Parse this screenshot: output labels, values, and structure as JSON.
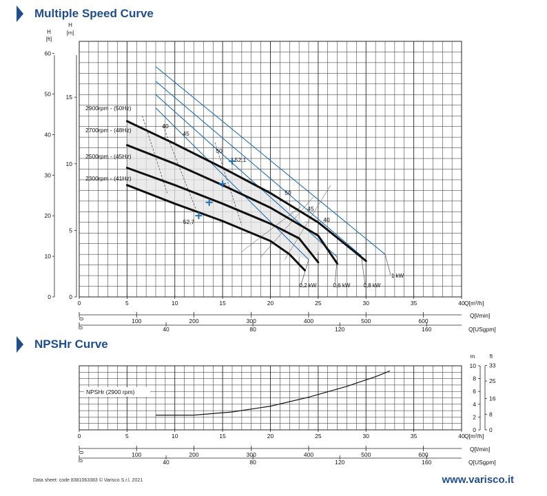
{
  "section1": {
    "title": "Multiple Speed Curve"
  },
  "section2": {
    "title": "NPSHr Curve"
  },
  "footer": {
    "left": "Data sheet: code 8381063383 © Varisco S.r.l. 2021",
    "right": "www.varisco.it"
  },
  "colors": {
    "title": "#1f4e8c",
    "curve": "#111111",
    "iso_efficiency": "#1f6fb5",
    "power": "#1f6fb5",
    "grid": "#222222"
  },
  "chart_data": [
    {
      "type": "line",
      "id": "multiple-speed",
      "axes": {
        "h_ft_label": [
          "H",
          "[ft]"
        ],
        "h_m_label": [
          "H",
          "[m]"
        ],
        "ft_ticks": [
          "0",
          "10",
          "20",
          "30",
          "40",
          "50",
          "60"
        ],
        "m_ticks": [
          "0",
          "5",
          "10",
          "15"
        ],
        "x_label": "Q[m³/h]",
        "x_ticks": [
          "0",
          "5",
          "10",
          "15",
          "20",
          "25",
          "30",
          "35",
          "40"
        ],
        "xlim": [
          0,
          40
        ],
        "ylim_m": [
          0,
          19.2
        ],
        "ylim_ft": [
          0,
          62.99
        ],
        "grid": true
      },
      "series": [
        {
          "name": "2900rpm - (50Hz)",
          "points": [
            [
              5,
              13.2
            ],
            [
              10,
              11.5
            ],
            [
              15,
              9.7
            ],
            [
              20,
              7.8
            ],
            [
              25,
              5.6
            ],
            [
              30,
              2.7
            ]
          ]
        },
        {
          "name": "2700rpm - (48Hz)",
          "points": [
            [
              5,
              11.4
            ],
            [
              10,
              10.0
            ],
            [
              15,
              8.4
            ],
            [
              20,
              6.7
            ],
            [
              25,
              4.6
            ],
            [
              27,
              2.5
            ]
          ]
        },
        {
          "name": "2500rpm - (45Hz)",
          "points": [
            [
              5,
              9.7
            ],
            [
              10,
              8.4
            ],
            [
              15,
              7.0
            ],
            [
              20,
              5.5
            ],
            [
              23,
              4.4
            ],
            [
              25,
              2.6
            ]
          ]
        },
        {
          "name": "2300rpm - (41Hz)",
          "points": [
            [
              5,
              8.4
            ],
            [
              10,
              7.0
            ],
            [
              15,
              5.7
            ],
            [
              20,
              4.2
            ],
            [
              22,
              3.2
            ],
            [
              23.6,
              2.0
            ]
          ]
        }
      ],
      "efficiency_labels": [
        "40",
        "45",
        "50",
        "52,1",
        "52,7",
        "50",
        "45",
        "40"
      ],
      "best_efficiency_points": [
        [
          16,
          10.2
        ],
        [
          15,
          8.5
        ],
        [
          13.6,
          7.1
        ],
        [
          12.5,
          6.1
        ]
      ],
      "power_lines": [
        {
          "label": "0,2 kW",
          "points": [
            [
              8,
              14.2
            ],
            [
              24,
              2.8
            ]
          ]
        },
        {
          "label": "0,6 kW",
          "points": [
            [
              8,
              15.2
            ],
            [
              27,
              3.0
            ]
          ]
        },
        {
          "label": "0,8 kW",
          "points": [
            [
              8,
              16.2
            ],
            [
              29.5,
              3.1
            ]
          ]
        },
        {
          "label": "1 kW",
          "points": [
            [
              8,
              17.3
            ],
            [
              32,
              3.2
            ]
          ]
        }
      ],
      "secondary_axes": [
        {
          "label": "Q[l/min]",
          "ticks": [
            "0",
            "100",
            "200",
            "300",
            "400",
            "500",
            "600"
          ]
        },
        {
          "label": "Q[USgpm]",
          "ticks": [
            "0",
            "40",
            "80",
            "120",
            "160"
          ]
        }
      ]
    },
    {
      "type": "line",
      "id": "npshr",
      "axes": {
        "m_label": "m",
        "ft_label": "ft",
        "m_ticks": [
          "0",
          "2",
          "4",
          "6",
          "8",
          "10"
        ],
        "ft_ticks": [
          "0",
          "8",
          "16",
          "25",
          "33"
        ],
        "ylim_m": [
          0,
          10
        ],
        "x_label": "Q[m³/h]",
        "x_ticks": [
          "0",
          "5",
          "10",
          "15",
          "20",
          "25",
          "30",
          "35",
          "40"
        ],
        "xlim": [
          0,
          40
        ],
        "grid": true
      },
      "series": [
        {
          "name": "NPSHr (2900 rpm)",
          "points": [
            [
              8,
              2.3
            ],
            [
              12,
              2.3
            ],
            [
              16,
              2.8
            ],
            [
              20,
              3.7
            ],
            [
              24,
              5.1
            ],
            [
              28,
              6.8
            ],
            [
              31,
              8.3
            ],
            [
              32.5,
              9.2
            ]
          ]
        }
      ],
      "secondary_axes": [
        {
          "label": "Q[l/min]",
          "ticks": [
            "0",
            "100",
            "200",
            "300",
            "400",
            "500",
            "600"
          ]
        },
        {
          "label": "Q[USgpm]",
          "ticks": [
            "0",
            "40",
            "80",
            "120",
            "160"
          ]
        }
      ]
    }
  ]
}
